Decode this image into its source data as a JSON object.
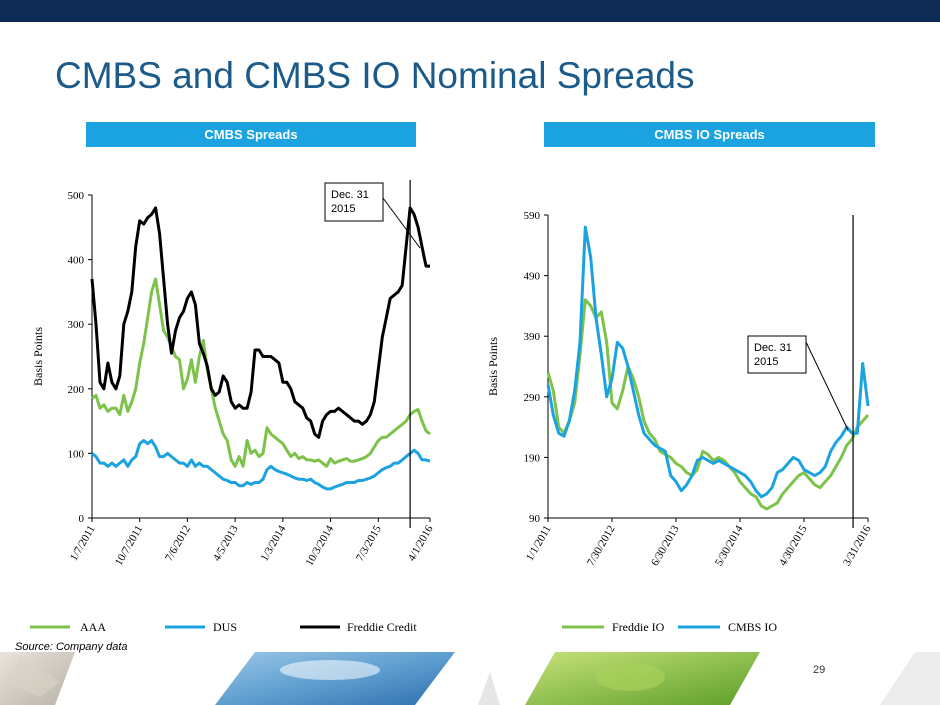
{
  "page": {
    "title": "CMBS and CMBS IO Nominal Spreads",
    "source": "Source: Company data",
    "page_number": "29"
  },
  "colors": {
    "topbar": "#0d2b55",
    "title": "#1c5a8a",
    "header": "#1aa3e0",
    "green": "#7dc24a",
    "blue": "#1aa3e0",
    "black": "#000000"
  },
  "chart_data": [
    {
      "type": "line",
      "title": "CMBS Spreads",
      "ylabel": "Basis Points",
      "ylim": [
        0,
        500
      ],
      "yticks": [
        0,
        100,
        200,
        300,
        400,
        500
      ],
      "xticks": [
        "1/7/2011",
        "10/7/2011",
        "7/6/2012",
        "4/5/2013",
        "1/3/2014",
        "10/3/2014",
        "7/3/2015",
        "4/1/2016"
      ],
      "annotation": {
        "text_line1": "Dec. 31",
        "text_line2": "2015",
        "x": "Dec. 31 2015"
      },
      "legend_position": "bottom",
      "series": [
        {
          "name": "AAA",
          "color": "#7dc24a",
          "x": [
            0,
            0.25,
            0.5,
            0.75,
            1,
            1.25,
            1.5,
            1.75,
            2,
            2.25,
            2.5,
            2.75,
            3,
            3.25,
            3.5,
            3.75,
            4,
            4.25,
            4.5,
            4.75,
            5,
            5.25,
            5.5,
            5.75,
            6,
            6.25,
            6.5,
            6.75,
            7,
            7.25,
            7.5,
            7.75,
            8,
            8.25,
            8.5,
            8.75,
            9,
            9.25,
            9.5,
            9.75,
            10,
            10.25,
            10.5,
            10.75,
            11,
            11.25,
            11.5,
            11.75,
            12,
            12.25,
            12.5,
            12.75,
            13,
            13.25,
            13.5,
            13.75,
            14,
            14.25,
            14.5,
            14.75,
            15,
            15.25,
            15.5,
            15.75,
            16,
            16.25,
            16.5,
            16.75,
            17,
            17.25,
            17.5,
            17.75,
            18,
            18.25,
            18.5,
            18.75,
            19,
            19.25,
            19.5,
            19.75,
            20,
            20.25,
            20.5,
            20.75,
            21,
            21.25
          ],
          "values": [
            185,
            190,
            170,
            175,
            165,
            170,
            170,
            160,
            190,
            165,
            180,
            200,
            240,
            270,
            310,
            350,
            370,
            330,
            290,
            280,
            265,
            250,
            245,
            200,
            215,
            245,
            210,
            250,
            275,
            230,
            200,
            170,
            150,
            130,
            120,
            90,
            80,
            95,
            80,
            120,
            100,
            105,
            95,
            100,
            140,
            130,
            125,
            120,
            115,
            105,
            95,
            100,
            92,
            95,
            90,
            90,
            88,
            90,
            85,
            80,
            92,
            85,
            88,
            90,
            92,
            88,
            88,
            90,
            92,
            95,
            100,
            110,
            120,
            125,
            125,
            130,
            135,
            140,
            145,
            150,
            160,
            165,
            168,
            150,
            135,
            130
          ]
        },
        {
          "name": "DUS",
          "color": "#1aa3e0",
          "x": [
            0,
            0.25,
            0.5,
            0.75,
            1,
            1.25,
            1.5,
            1.75,
            2,
            2.25,
            2.5,
            2.75,
            3,
            3.25,
            3.5,
            3.75,
            4,
            4.25,
            4.5,
            4.75,
            5,
            5.25,
            5.5,
            5.75,
            6,
            6.25,
            6.5,
            6.75,
            7,
            7.25,
            7.5,
            7.75,
            8,
            8.25,
            8.5,
            8.75,
            9,
            9.25,
            9.5,
            9.75,
            10,
            10.25,
            10.5,
            10.75,
            11,
            11.25,
            11.5,
            11.75,
            12,
            12.25,
            12.5,
            12.75,
            13,
            13.25,
            13.5,
            13.75,
            14,
            14.25,
            14.5,
            14.75,
            15,
            15.25,
            15.5,
            15.75,
            16,
            16.25,
            16.5,
            16.75,
            17,
            17.25,
            17.5,
            17.75,
            18,
            18.25,
            18.5,
            18.75,
            19,
            19.25,
            19.5,
            19.75,
            20,
            20.25,
            20.5,
            20.75,
            21,
            21.25
          ],
          "values": [
            100,
            95,
            85,
            85,
            80,
            85,
            80,
            85,
            90,
            80,
            90,
            95,
            115,
            120,
            115,
            120,
            110,
            95,
            95,
            100,
            95,
            90,
            85,
            85,
            80,
            90,
            80,
            85,
            80,
            80,
            75,
            70,
            65,
            60,
            58,
            55,
            55,
            50,
            50,
            55,
            52,
            55,
            55,
            60,
            75,
            80,
            75,
            72,
            70,
            68,
            65,
            62,
            60,
            60,
            58,
            60,
            55,
            52,
            48,
            45,
            45,
            48,
            50,
            52,
            55,
            55,
            55,
            58,
            58,
            60,
            62,
            65,
            70,
            75,
            78,
            80,
            85,
            85,
            90,
            95,
            100,
            105,
            100,
            90,
            90,
            88
          ]
        },
        {
          "name": "Freddie Credit",
          "color": "#000000",
          "x": [
            0,
            0.25,
            0.5,
            0.75,
            1,
            1.25,
            1.5,
            1.75,
            2,
            2.25,
            2.5,
            2.75,
            3,
            3.25,
            3.5,
            3.75,
            4,
            4.25,
            4.5,
            4.75,
            5,
            5.25,
            5.5,
            5.75,
            6,
            6.25,
            6.5,
            6.75,
            7,
            7.25,
            7.5,
            7.75,
            8,
            8.25,
            8.5,
            8.75,
            9,
            9.25,
            9.5,
            9.75,
            10,
            10.25,
            10.5,
            10.75,
            11,
            11.25,
            11.5,
            11.75,
            12,
            12.25,
            12.5,
            12.75,
            13,
            13.25,
            13.5,
            13.75,
            14,
            14.25,
            14.5,
            14.75,
            15,
            15.25,
            15.5,
            15.75,
            16,
            16.25,
            16.5,
            16.75,
            17,
            17.25,
            17.5,
            17.75,
            18,
            18.25,
            18.5,
            18.75,
            19,
            19.25,
            19.5,
            19.75,
            20,
            20.25,
            20.5,
            20.75,
            21,
            21.25
          ],
          "values": [
            370,
            300,
            210,
            200,
            240,
            210,
            200,
            220,
            300,
            320,
            350,
            420,
            460,
            455,
            465,
            470,
            480,
            440,
            370,
            300,
            255,
            290,
            310,
            320,
            340,
            350,
            330,
            270,
            255,
            235,
            200,
            190,
            195,
            220,
            210,
            180,
            170,
            175,
            170,
            170,
            195,
            260,
            260,
            250,
            250,
            250,
            245,
            240,
            210,
            210,
            200,
            180,
            175,
            170,
            155,
            150,
            130,
            125,
            150,
            160,
            165,
            165,
            170,
            165,
            160,
            155,
            150,
            150,
            145,
            150,
            160,
            180,
            230,
            280,
            310,
            340,
            345,
            350,
            360,
            420,
            480,
            470,
            450,
            420,
            390,
            390
          ]
        }
      ]
    },
    {
      "type": "line",
      "title": "CMBS IO Spreads",
      "ylabel": "Basis Points",
      "ylim": [
        90,
        590
      ],
      "yticks": [
        90,
        190,
        290,
        390,
        490,
        590
      ],
      "xticks": [
        "1/1/2011",
        "7/30/2012",
        "6/30/2013",
        "5/30/2014",
        "4/30/2015",
        "3/31/2016"
      ],
      "annotation": {
        "text_line1": "Dec. 31",
        "text_line2": "2015",
        "x": "Dec. 31 2015"
      },
      "legend_position": "bottom",
      "series": [
        {
          "name": "Freddie IO",
          "color": "#7dc24a",
          "x": [
            0,
            0.25,
            0.5,
            0.75,
            1,
            1.25,
            1.5,
            1.75,
            2,
            2.25,
            2.5,
            2.75,
            3,
            3.25,
            3.5,
            3.75,
            4,
            4.25,
            4.5,
            4.75,
            5,
            5.25,
            5.5,
            5.75,
            6,
            6.25,
            6.5,
            6.75,
            7,
            7.25,
            7.5,
            7.75,
            8,
            8.25,
            8.5,
            8.75,
            9,
            9.25,
            9.5,
            9.75,
            10,
            10.25,
            10.5,
            10.75,
            11,
            11.25,
            11.5,
            11.75,
            12,
            12.25,
            12.5,
            12.75,
            13,
            13.25,
            13.5,
            13.75,
            14,
            14.25,
            14.5,
            14.75,
            15
          ],
          "values": [
            330,
            300,
            240,
            230,
            250,
            280,
            360,
            450,
            440,
            420,
            430,
            380,
            280,
            270,
            300,
            340,
            320,
            290,
            250,
            230,
            220,
            200,
            195,
            190,
            180,
            175,
            165,
            160,
            170,
            200,
            195,
            185,
            190,
            185,
            175,
            165,
            150,
            140,
            130,
            125,
            110,
            105,
            110,
            115,
            130,
            140,
            150,
            160,
            165,
            155,
            145,
            140,
            150,
            160,
            175,
            190,
            210,
            220,
            240,
            250,
            260
          ]
        },
        {
          "name": "CMBS IO",
          "color": "#1aa3e0",
          "x": [
            0,
            0.25,
            0.5,
            0.75,
            1,
            1.25,
            1.5,
            1.75,
            2,
            2.25,
            2.5,
            2.75,
            3,
            3.25,
            3.5,
            3.75,
            4,
            4.25,
            4.5,
            4.75,
            5,
            5.25,
            5.5,
            5.75,
            6,
            6.25,
            6.5,
            6.75,
            7,
            7.25,
            7.5,
            7.75,
            8,
            8.25,
            8.5,
            8.75,
            9,
            9.25,
            9.5,
            9.75,
            10,
            10.25,
            10.5,
            10.75,
            11,
            11.25,
            11.5,
            11.75,
            12,
            12.25,
            12.5,
            12.75,
            13,
            13.25,
            13.5,
            13.75,
            14,
            14.25,
            14.5,
            14.75,
            15
          ],
          "values": [
            310,
            260,
            230,
            225,
            250,
            300,
            380,
            570,
            520,
            420,
            360,
            290,
            320,
            380,
            370,
            340,
            300,
            260,
            230,
            220,
            210,
            205,
            200,
            160,
            150,
            135,
            145,
            160,
            185,
            190,
            185,
            180,
            185,
            180,
            175,
            170,
            165,
            160,
            150,
            135,
            125,
            130,
            140,
            165,
            170,
            180,
            190,
            185,
            170,
            165,
            160,
            165,
            175,
            200,
            215,
            225,
            240,
            230,
            230,
            345,
            275
          ]
        }
      ]
    }
  ]
}
